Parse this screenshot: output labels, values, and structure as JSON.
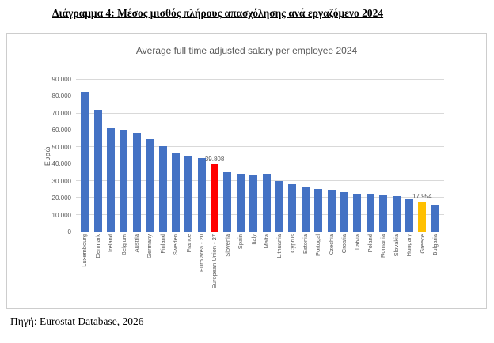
{
  "page": {
    "title": "Διάγραμμα 4: Μέσος μισθός πλήρους απασχόλησης ανά εργαζόμενο 2024",
    "source": "Πηγή: Eurostat Database, 2026"
  },
  "chart_data": {
    "type": "bar",
    "title": "Average full time adjusted salary per employee 2024",
    "xlabel": "",
    "ylabel": "Ευρώ",
    "ylim": [
      0,
      90000
    ],
    "grid": true,
    "legend": false,
    "ytick_values": [
      0,
      10000,
      20000,
      30000,
      40000,
      50000,
      60000,
      70000,
      80000,
      90000
    ],
    "ytick_labels": [
      "0",
      "10.000",
      "20.000",
      "30.000",
      "40.000",
      "50.000",
      "60.000",
      "70.000",
      "80.000",
      "90.000"
    ],
    "categories": [
      "Luxembourg",
      "Denmark",
      "Ireland",
      "Belgium",
      "Austria",
      "Germany",
      "Finland",
      "Sweden",
      "France",
      "Euro area - 20",
      "European Union - 27",
      "Slovenia",
      "Spain",
      "Italy",
      "Malta",
      "Lithuania",
      "Cyprus",
      "Estonia",
      "Portugal",
      "Czechia",
      "Croatia",
      "Latvia",
      "Poland",
      "Romania",
      "Slovakia",
      "Hungary",
      "Greece",
      "Bulgaria"
    ],
    "values": [
      83000,
      72000,
      61500,
      60000,
      58500,
      55000,
      50500,
      47000,
      44500,
      43500,
      39808,
      35500,
      34000,
      33500,
      34000,
      30000,
      28000,
      26500,
      25500,
      25000,
      23500,
      22500,
      22000,
      21500,
      21000,
      19000,
      17954,
      16000
    ],
    "default_bar_color": "#4472c4",
    "highlights": {
      "10": {
        "color": "#ff0000",
        "label": "39.808"
      },
      "26": {
        "color": "#ffc000",
        "label": "17.954"
      }
    },
    "colors": {
      "title_text": "#595959",
      "axis_text": "#595959",
      "gridline": "#d9d9d9",
      "axis_line": "#a6a6a6"
    }
  }
}
